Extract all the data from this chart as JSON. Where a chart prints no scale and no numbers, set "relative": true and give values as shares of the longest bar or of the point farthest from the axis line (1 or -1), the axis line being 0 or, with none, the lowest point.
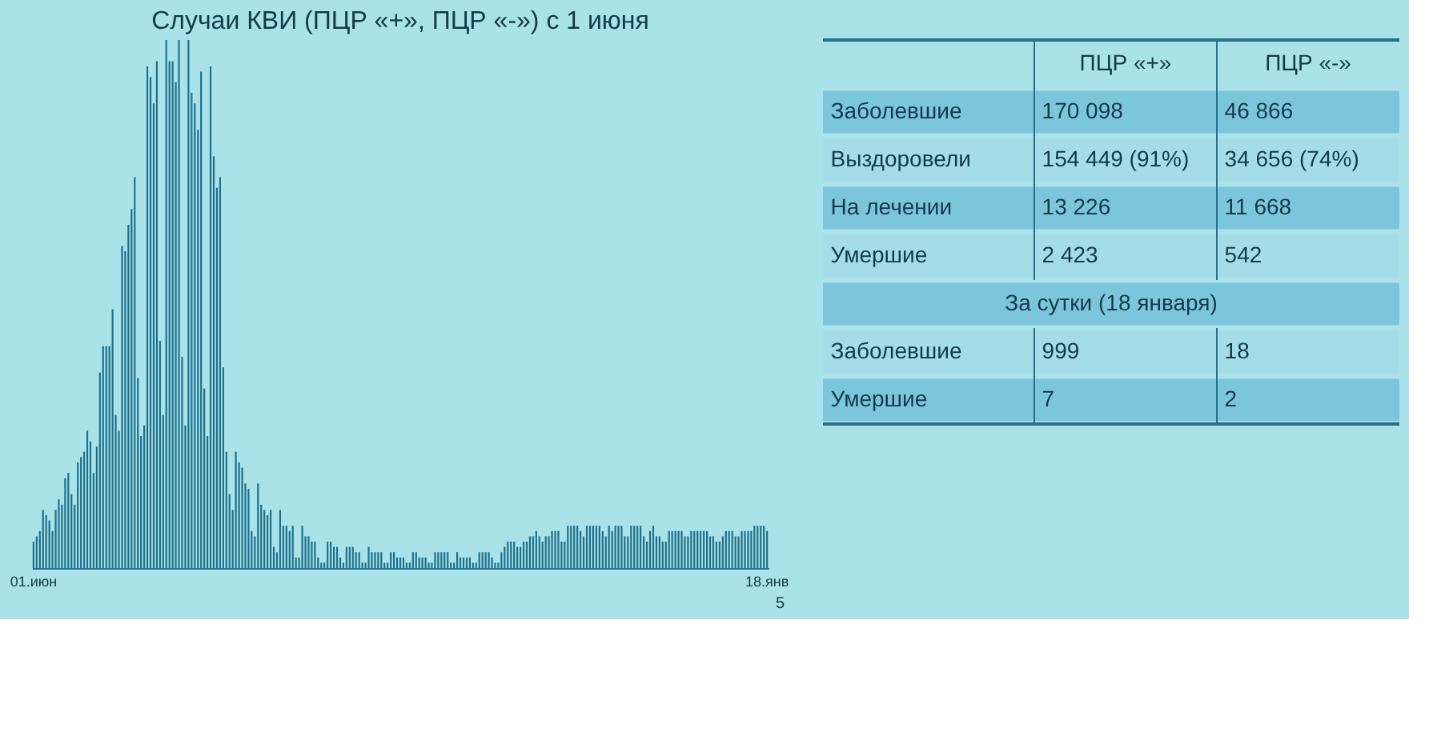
{
  "chart_data": [
    {
      "type": "bar",
      "title": "Случаи КВИ (ПЦР «+», ПЦР «-») с 1 июня",
      "relative": true,
      "color": "#1f6f8b",
      "grid": false,
      "annotations": [
        "5"
      ],
      "categories": [
        "01.июн",
        null,
        null,
        null,
        null,
        null,
        null,
        null,
        null,
        null,
        null,
        null,
        null,
        null,
        null,
        null,
        null,
        null,
        null,
        null,
        null,
        null,
        null,
        null,
        null,
        null,
        null,
        null,
        null,
        null,
        null,
        null,
        null,
        null,
        null,
        null,
        null,
        null,
        null,
        null,
        null,
        null,
        null,
        null,
        null,
        null,
        null,
        null,
        null,
        null,
        null,
        null,
        null,
        null,
        null,
        null,
        null,
        null,
        null,
        null,
        null,
        null,
        null,
        null,
        null,
        null,
        null,
        null,
        null,
        null,
        null,
        null,
        null,
        null,
        null,
        null,
        null,
        null,
        null,
        null,
        null,
        null,
        null,
        null,
        null,
        null,
        null,
        null,
        null,
        null,
        null,
        null,
        null,
        null,
        null,
        null,
        null,
        null,
        null,
        null,
        null,
        null,
        null,
        null,
        null,
        null,
        null,
        null,
        null,
        null,
        null,
        null,
        null,
        null,
        null,
        null,
        null,
        null,
        null,
        null,
        null,
        null,
        null,
        null,
        null,
        null,
        null,
        null,
        null,
        null,
        null,
        null,
        null,
        null,
        null,
        null,
        null,
        null,
        null,
        null,
        null,
        null,
        null,
        null,
        null,
        null,
        null,
        null,
        null,
        null,
        null,
        null,
        null,
        null,
        null,
        null,
        null,
        null,
        null,
        null,
        null,
        null,
        null,
        null,
        null,
        null,
        null,
        null,
        null,
        null,
        null,
        null,
        null,
        null,
        null,
        null,
        null,
        null,
        null,
        null,
        null,
        null,
        null,
        null,
        null,
        null,
        null,
        null,
        null,
        null,
        null,
        null,
        null,
        null,
        null,
        null,
        null,
        null,
        null,
        null,
        null,
        null,
        null,
        null,
        null,
        null,
        null,
        null,
        null,
        null,
        null,
        null,
        null,
        null,
        null,
        null,
        null,
        null,
        null,
        null,
        null,
        null,
        null,
        null,
        null,
        null,
        null,
        null,
        null,
        null,
        null,
        null,
        null,
        "18.янв"
      ],
      "values": [
        0.05,
        0.06,
        0.07,
        0.11,
        0.1,
        0.09,
        0.07,
        0.11,
        0.13,
        0.12,
        0.17,
        0.18,
        0.14,
        0.12,
        0.2,
        0.21,
        0.22,
        0.26,
        0.24,
        0.18,
        0.23,
        0.37,
        0.42,
        0.42,
        0.42,
        0.49,
        0.29,
        0.26,
        0.61,
        0.6,
        0.65,
        0.68,
        0.74,
        0.36,
        0.25,
        0.27,
        0.95,
        0.93,
        0.88,
        0.96,
        0.43,
        0.29,
        1.0,
        0.96,
        0.96,
        0.92,
        1.0,
        0.4,
        0.27,
        1.0,
        0.9,
        0.88,
        0.83,
        0.94,
        0.34,
        0.25,
        0.95,
        0.78,
        0.72,
        0.74,
        0.38,
        0.22,
        0.14,
        0.11,
        0.22,
        0.2,
        0.19,
        0.16,
        0.15,
        0.07,
        0.06,
        0.16,
        0.12,
        0.11,
        0.1,
        0.11,
        0.04,
        0.03,
        0.11,
        0.08,
        0.08,
        0.07,
        0.08,
        0.02,
        0.02,
        0.08,
        0.06,
        0.06,
        0.05,
        0.05,
        0.02,
        0.01,
        0.01,
        0.05,
        0.05,
        0.04,
        0.04,
        0.02,
        0.01,
        0.04,
        0.04,
        0.04,
        0.03,
        0.03,
        0.01,
        0.01,
        0.04,
        0.03,
        0.03,
        0.03,
        0.03,
        0.01,
        0.01,
        0.03,
        0.03,
        0.02,
        0.02,
        0.02,
        0.01,
        0.01,
        0.03,
        0.03,
        0.02,
        0.02,
        0.02,
        0.01,
        0.01,
        0.03,
        0.03,
        0.03,
        0.03,
        0.03,
        0.01,
        0.01,
        0.03,
        0.02,
        0.02,
        0.02,
        0.02,
        0.01,
        0.01,
        0.03,
        0.03,
        0.03,
        0.03,
        0.02,
        0.01,
        0.01,
        0.03,
        0.04,
        0.05,
        0.05,
        0.05,
        0.04,
        0.04,
        0.05,
        0.05,
        0.06,
        0.06,
        0.07,
        0.06,
        0.05,
        0.06,
        0.06,
        0.07,
        0.07,
        0.07,
        0.05,
        0.05,
        0.08,
        0.08,
        0.08,
        0.08,
        0.07,
        0.06,
        0.08,
        0.08,
        0.08,
        0.08,
        0.08,
        0.07,
        0.06,
        0.08,
        0.07,
        0.08,
        0.08,
        0.08,
        0.06,
        0.06,
        0.08,
        0.08,
        0.08,
        0.08,
        0.06,
        0.05,
        0.07,
        0.08,
        0.06,
        0.06,
        0.05,
        0.05,
        0.07,
        0.07,
        0.07,
        0.07,
        0.07,
        0.06,
        0.06,
        0.07,
        0.07,
        0.07,
        0.07,
        0.07,
        0.07,
        null,
        0.06,
        0.06,
        0.05,
        0.05,
        0.06,
        0.07,
        0.07,
        0.07,
        0.06,
        0.06,
        0.07,
        0.07,
        0.07,
        0.07,
        0.08,
        0.08,
        0.08,
        0.08,
        0.07
      ]
    },
    {
      "type": "other",
      "categories": [
        "ПЦР «+»",
        "ПЦР «-»"
      ],
      "y_categories": [
        "Заболевшие",
        "Выздоровели",
        "На лечении",
        "Умершие",
        null,
        "Заболевшие",
        "Умершие"
      ],
      "cell_labels": [
        [
          "170 098",
          "46 866"
        ],
        [
          "154 449 (91%)",
          "34 656 (74%)"
        ],
        [
          "13 226",
          "11 668"
        ],
        [
          "2 423",
          "542"
        ],
        [
          null,
          null
        ],
        [
          "999",
          "18"
        ],
        [
          "7",
          "2"
        ]
      ],
      "annotations": [
        "За сутки (18 января)"
      ]
    }
  ]
}
